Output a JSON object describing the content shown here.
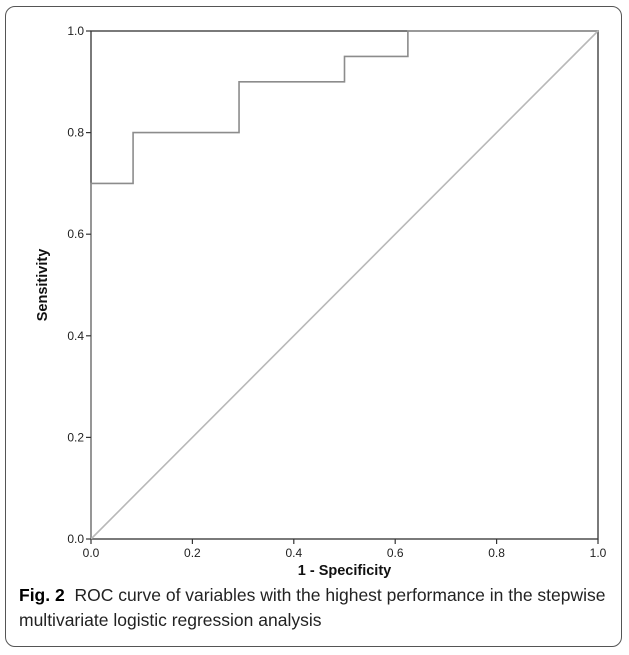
{
  "chart_data": {
    "type": "line",
    "xlabel": "1 - Specificity",
    "ylabel": "Sensitivity",
    "xlim": [
      0,
      1
    ],
    "ylim": [
      0,
      1
    ],
    "x_ticks": [
      "0.0",
      "0.2",
      "0.4",
      "0.6",
      "0.8",
      "1.0"
    ],
    "y_ticks": [
      "0.0",
      "0.2",
      "0.4",
      "0.6",
      "0.8",
      "1.0"
    ],
    "grid": false,
    "legend": "none",
    "series": [
      {
        "x": [
          0,
          0,
          0.083,
          0.083,
          0.292,
          0.292,
          0.5,
          0.5,
          0.625,
          0.625,
          1.0
        ],
        "y": [
          0,
          0.7,
          0.7,
          0.8,
          0.8,
          0.9,
          0.9,
          0.95,
          0.95,
          1.0,
          1.0
        ],
        "color": "#8c8c8c"
      },
      {
        "x": [
          0,
          1
        ],
        "y": [
          0,
          1
        ],
        "color": "#b8b8b8"
      }
    ],
    "axis_color": "#333333"
  },
  "caption": {
    "label": "Fig. 2",
    "text": "ROC curve of variables with the highest performance in the stepwise multivariate logistic regression analysis"
  }
}
